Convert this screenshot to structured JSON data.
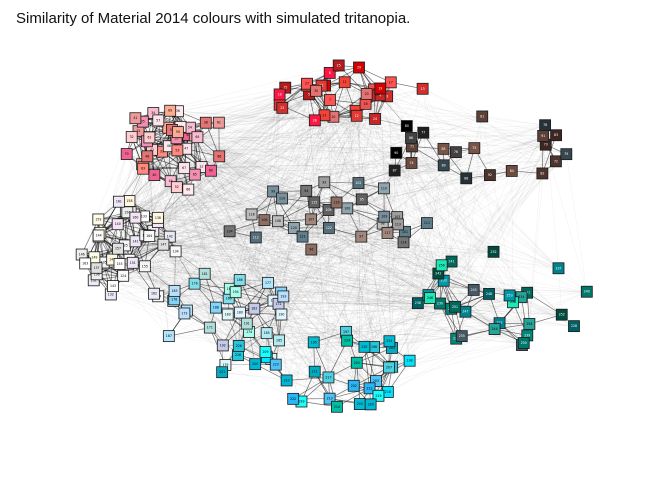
{
  "title": "Similarity of Material 2014 colours with simulated tritanopia.",
  "graph": {
    "node_count": 256,
    "stroke_color": "#1a1a1a",
    "edge_color": "#000000",
    "groups": [
      {
        "name": "red",
        "colors": [
          "#f44336",
          "#e53935",
          "#d32f2f",
          "#c62828",
          "#b71c1c",
          "#ef5350",
          "#ff5252",
          "#ff1744",
          "#d50000",
          "#e57373"
        ]
      },
      {
        "name": "pink",
        "colors": [
          "#ef9a9a",
          "#ffcdd2",
          "#ff8a80",
          "#f8bbd0",
          "#f48fb1",
          "#ffebee",
          "#fce4ec",
          "#e57373",
          "#ffab91",
          "#f06292"
        ]
      },
      {
        "name": "brown-dark",
        "colors": [
          "#5d4037",
          "#4e342e",
          "#3e2723",
          "#6d4c41",
          "#795548",
          "#424242",
          "#212121",
          "#263238",
          "#37474f",
          "#000000"
        ]
      },
      {
        "name": "grey",
        "colors": [
          "#9e9e9e",
          "#757575",
          "#616161",
          "#8d6e63",
          "#a1887f",
          "#bdbdbd",
          "#78909c",
          "#90a4ae",
          "#607d8b",
          "#546e7a"
        ]
      },
      {
        "name": "white",
        "colors": [
          "#ffffff",
          "#fafafa",
          "#f5f5f5",
          "#eeeeee",
          "#e0e0e0",
          "#fff8e1",
          "#fffde7",
          "#f3e5f5",
          "#ede7f6",
          "#e8eaf6"
        ]
      },
      {
        "name": "light-cyan",
        "colors": [
          "#b2ebf2",
          "#80deea",
          "#b3e5fc",
          "#81d4fa",
          "#e0f7fa",
          "#e1f5fe",
          "#b2dfdb",
          "#c5cae9",
          "#bbdefb",
          "#a7ffeb"
        ]
      },
      {
        "name": "cyan",
        "colors": [
          "#00bcd4",
          "#26c6da",
          "#4dd0e1",
          "#00e5ff",
          "#18ffff",
          "#00b8d4",
          "#00acc1",
          "#29b6f6",
          "#4fc3f7",
          "#00bfa5"
        ]
      },
      {
        "name": "teal",
        "colors": [
          "#00838f",
          "#006064",
          "#00897b",
          "#00796b",
          "#00695c",
          "#004d40",
          "#0097a7",
          "#26a69a",
          "#455a64",
          "#1de9b6"
        ]
      }
    ]
  }
}
